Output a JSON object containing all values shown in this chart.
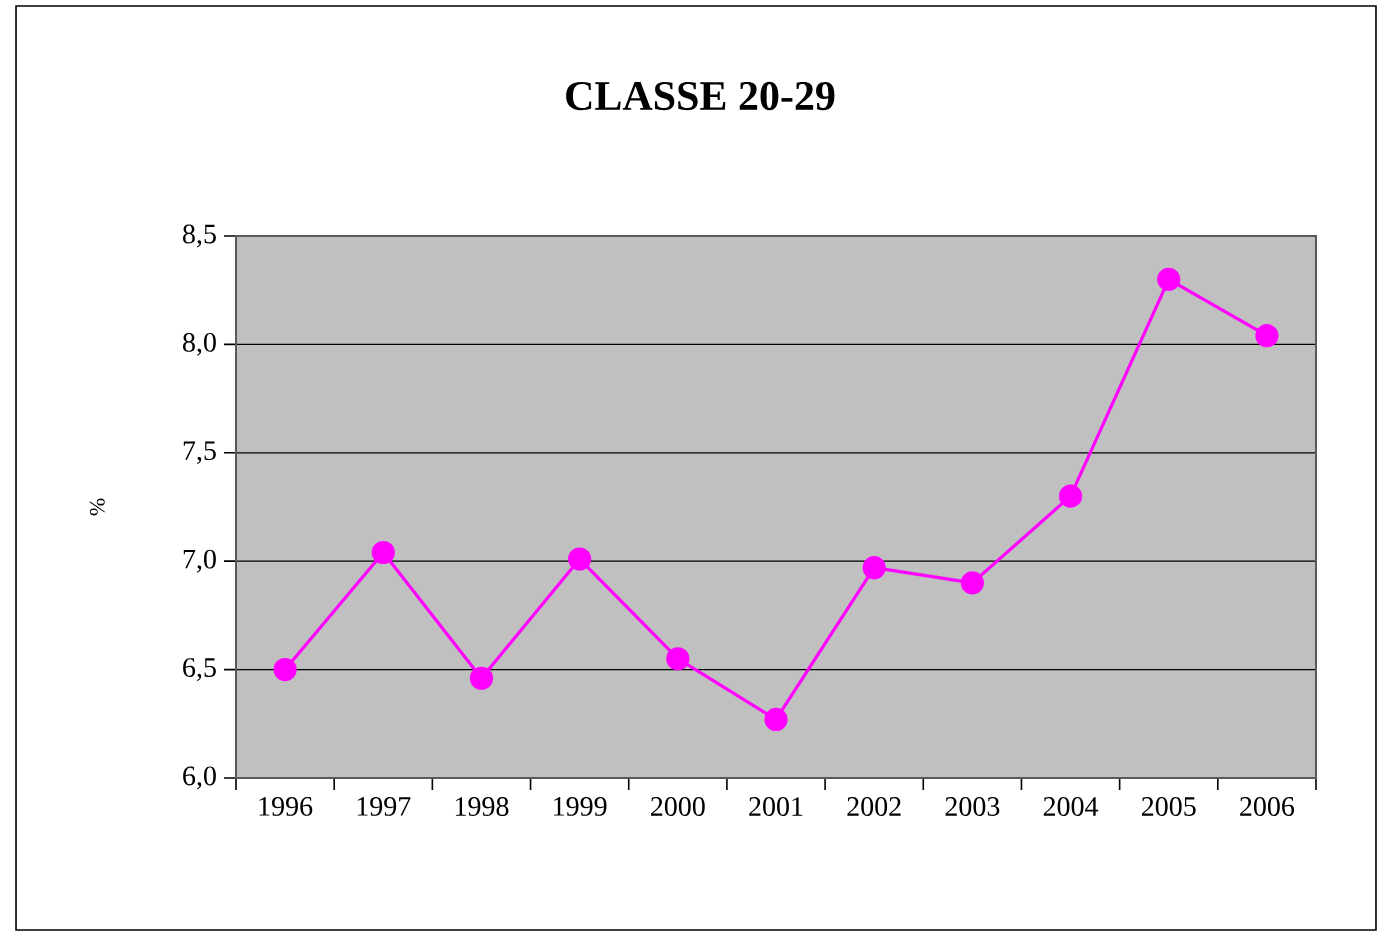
{
  "chart_data": {
    "type": "line",
    "title": "CLASSE 20-29",
    "ylabel": "%",
    "categories": [
      "1996",
      "1997",
      "1998",
      "1999",
      "2000",
      "2001",
      "2002",
      "2003",
      "2004",
      "2005",
      "2006"
    ],
    "values": [
      6.5,
      7.04,
      6.46,
      7.01,
      6.55,
      6.27,
      6.97,
      6.9,
      7.3,
      8.3,
      8.04
    ],
    "color": "#ff00ff",
    "marker": "circle",
    "line_style": "solid",
    "grid": "y",
    "ylim": [
      6.0,
      8.5
    ],
    "yticks": [
      {
        "value": 6.0,
        "label": "6,0"
      },
      {
        "value": 6.5,
        "label": "6,5"
      },
      {
        "value": 7.0,
        "label": "7,0"
      },
      {
        "value": 7.5,
        "label": "7,5"
      },
      {
        "value": 8.0,
        "label": "8,0"
      },
      {
        "value": 8.5,
        "label": "8,5"
      }
    ]
  }
}
